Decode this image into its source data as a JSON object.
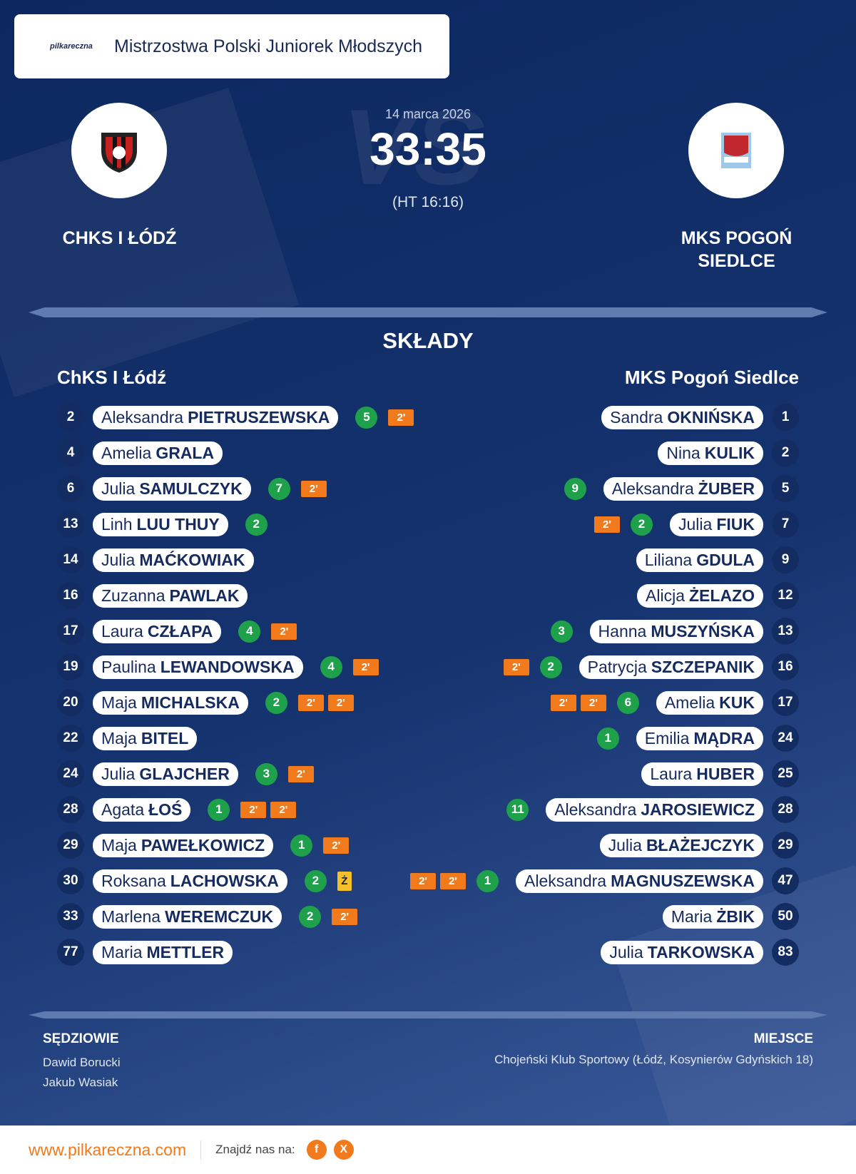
{
  "header": {
    "logo_text": "pilkareczna",
    "title": "Mistrzostwa Polski Juniorek Młodszych"
  },
  "match": {
    "date": "14 marca 2026",
    "score": "33:35",
    "halftime": "(HT 16:16)",
    "home_team": "CHKS I ŁÓDŹ",
    "away_team": "MKS POGOŃ SIEDLCE"
  },
  "lineups": {
    "title": "SKŁADY",
    "home": {
      "name": "ChKS I Łódź",
      "players": [
        {
          "number": 2,
          "first": "Aleksandra",
          "last": "PIETRUSZEWSKA",
          "goals": 5,
          "suspensions": [
            "2'"
          ]
        },
        {
          "number": 4,
          "first": "Amelia",
          "last": "GRALA"
        },
        {
          "number": 6,
          "first": "Julia",
          "last": "SAMULCZYK",
          "goals": 7,
          "suspensions": [
            "2'"
          ]
        },
        {
          "number": 13,
          "first": "Linh",
          "last": "LUU THUY",
          "goals": 2
        },
        {
          "number": 14,
          "first": "Julia",
          "last": "MAĆKOWIAK"
        },
        {
          "number": 16,
          "first": "Zuzanna",
          "last": "PAWLAK"
        },
        {
          "number": 17,
          "first": "Laura",
          "last": "CZŁAPA",
          "goals": 4,
          "suspensions": [
            "2'"
          ]
        },
        {
          "number": 19,
          "first": "Paulina",
          "last": "LEWANDOWSKA",
          "goals": 4,
          "suspensions": [
            "2'"
          ]
        },
        {
          "number": 20,
          "first": "Maja",
          "last": "MICHALSKA",
          "goals": 2,
          "suspensions": [
            "2'",
            "2'"
          ]
        },
        {
          "number": 22,
          "first": "Maja",
          "last": "BITEL"
        },
        {
          "number": 24,
          "first": "Julia",
          "last": "GLAJCHER",
          "goals": 3,
          "suspensions": [
            "2'"
          ]
        },
        {
          "number": 28,
          "first": "Agata",
          "last": "ŁOŚ",
          "goals": 1,
          "suspensions": [
            "2'",
            "2'"
          ]
        },
        {
          "number": 29,
          "first": "Maja",
          "last": "PAWEŁKOWICZ",
          "goals": 1,
          "suspensions": [
            "2'"
          ]
        },
        {
          "number": 30,
          "first": "Roksana",
          "last": "LACHOWSKA",
          "goals": 2,
          "cards": [
            "Ż"
          ]
        },
        {
          "number": 33,
          "first": "Marlena",
          "last": "WEREMCZUK",
          "goals": 2,
          "suspensions": [
            "2'"
          ]
        },
        {
          "number": 77,
          "first": "Maria",
          "last": "METTLER"
        }
      ]
    },
    "away": {
      "name": "MKS Pogoń Siedlce",
      "players": [
        {
          "number": 1,
          "first": "Sandra",
          "last": "OKNIŃSKA"
        },
        {
          "number": 2,
          "first": "Nina",
          "last": "KULIK"
        },
        {
          "number": 5,
          "first": "Aleksandra",
          "last": "ŻUBER",
          "goals": 9
        },
        {
          "number": 7,
          "first": "Julia",
          "last": "FIUK",
          "goals": 2,
          "suspensions": [
            "2'"
          ]
        },
        {
          "number": 9,
          "first": "Liliana",
          "last": "GDULA"
        },
        {
          "number": 12,
          "first": "Alicja",
          "last": "ŻELAZO"
        },
        {
          "number": 13,
          "first": "Hanna",
          "last": "MUSZYŃSKA",
          "goals": 3
        },
        {
          "number": 16,
          "first": "Patrycja",
          "last": "SZCZEPANIK",
          "goals": 2,
          "suspensions": [
            "2'"
          ]
        },
        {
          "number": 17,
          "first": "Amelia",
          "last": "KUK",
          "goals": 6,
          "suspensions": [
            "2'",
            "2'"
          ]
        },
        {
          "number": 24,
          "first": "Emilia",
          "last": "MĄDRA",
          "goals": 1
        },
        {
          "number": 25,
          "first": "Laura",
          "last": "HUBER"
        },
        {
          "number": 28,
          "first": "Aleksandra",
          "last": "JAROSIEWICZ",
          "goals": 11
        },
        {
          "number": 29,
          "first": "Julia",
          "last": "BŁAŻEJCZYK"
        },
        {
          "number": 47,
          "first": "Aleksandra",
          "last": "MAGNUSZEWSKA",
          "goals": 1,
          "suspensions": [
            "2'",
            "2'"
          ]
        },
        {
          "number": 50,
          "first": "Maria",
          "last": "ŻBIK"
        },
        {
          "number": 83,
          "first": "Julia",
          "last": "TARKOWSKA"
        }
      ]
    }
  },
  "officials": {
    "title": "SĘDZIOWIE",
    "referees": [
      "Dawid Borucki",
      "Jakub Wasiak"
    ]
  },
  "venue": {
    "title": "MIEJSCE",
    "name": "Chojeński Klub Sportowy (Łódź, Kosynierów Gdyńskich 18)"
  },
  "footer": {
    "website": "www.pilkareczna.com",
    "follow": "Znajdź nas na:",
    "socials": [
      "f",
      "X"
    ]
  }
}
